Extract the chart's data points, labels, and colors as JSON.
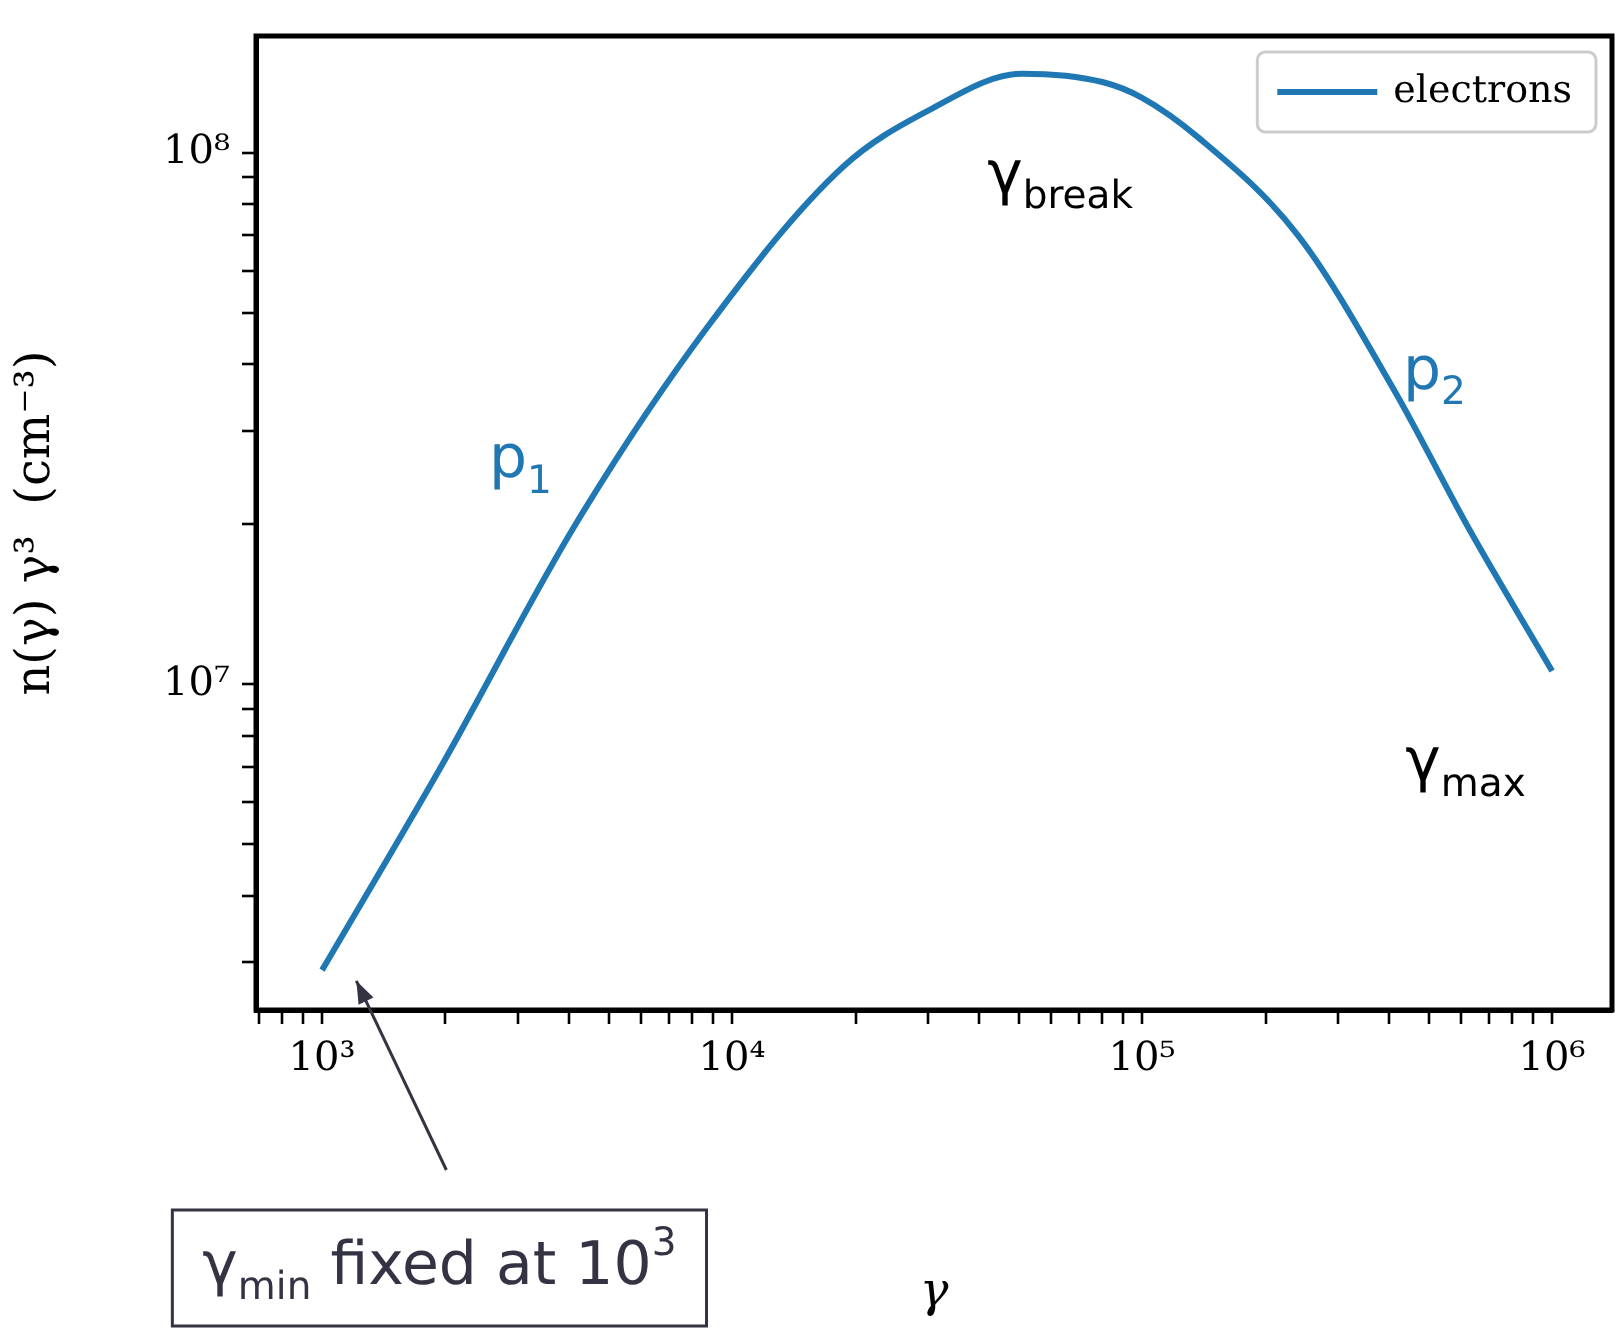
{
  "chart_data": {
    "type": "line",
    "xlabel": "γ",
    "ylabel": "n(γ) γ³  (cm⁻³)",
    "log": "xy",
    "legend": "top right",
    "x": [
      1000,
      1950,
      4150,
      8700,
      18600,
      30000,
      51000,
      80000,
      100000,
      137000,
      240000,
      410000,
      630000,
      1000000
    ],
    "series": [
      {
        "name": "electrons",
        "color": "#1f77b4",
        "values": [
          2900000,
          7000000,
          20000000,
          47000000,
          94000000,
          120000000,
          141000000,
          136000000,
          127000000,
          107000000,
          70000000,
          36000000,
          19500000,
          10600000
        ]
      }
    ],
    "xlim": [
      690,
      1400000
    ],
    "ylim": [
      2440000,
      166000000
    ],
    "xticks": [
      {
        "value": 700,
        "label": null
      },
      {
        "value": 800,
        "label": null
      },
      {
        "value": 900,
        "label": null
      },
      {
        "value": 1000,
        "label": "10³"
      },
      {
        "value": 2000,
        "label": null
      },
      {
        "value": 3000,
        "label": null
      },
      {
        "value": 4000,
        "label": null
      },
      {
        "value": 5000,
        "label": null
      },
      {
        "value": 6000,
        "label": null
      },
      {
        "value": 7000,
        "label": null
      },
      {
        "value": 8000,
        "label": null
      },
      {
        "value": 9000,
        "label": null
      },
      {
        "value": 10000,
        "label": "10⁴"
      },
      {
        "value": 20000,
        "label": null
      },
      {
        "value": 30000,
        "label": null
      },
      {
        "value": 40000,
        "label": null
      },
      {
        "value": 50000,
        "label": null
      },
      {
        "value": 60000,
        "label": null
      },
      {
        "value": 70000,
        "label": null
      },
      {
        "value": 80000,
        "label": null
      },
      {
        "value": 90000,
        "label": null
      },
      {
        "value": 100000,
        "label": "10⁵"
      },
      {
        "value": 200000,
        "label": null
      },
      {
        "value": 300000,
        "label": null
      },
      {
        "value": 400000,
        "label": null
      },
      {
        "value": 500000,
        "label": null
      },
      {
        "value": 600000,
        "label": null
      },
      {
        "value": 700000,
        "label": null
      },
      {
        "value": 800000,
        "label": null
      },
      {
        "value": 900000,
        "label": null
      },
      {
        "value": 1000000,
        "label": "10⁶"
      }
    ],
    "yticks": [
      {
        "value": 3000000,
        "label": null
      },
      {
        "value": 4000000,
        "label": null
      },
      {
        "value": 5000000,
        "label": null
      },
      {
        "value": 6000000,
        "label": null
      },
      {
        "value": 7000000,
        "label": null
      },
      {
        "value": 8000000,
        "label": null
      },
      {
        "value": 9000000,
        "label": null
      },
      {
        "value": 10000000,
        "label": "10⁷"
      },
      {
        "value": 20000000,
        "label": null
      },
      {
        "value": 30000000,
        "label": null
      },
      {
        "value": 40000000,
        "label": null
      },
      {
        "value": 50000000,
        "label": null
      },
      {
        "value": 60000000,
        "label": null
      },
      {
        "value": 70000000,
        "label": null
      },
      {
        "value": 80000000,
        "label": null
      },
      {
        "value": 90000000,
        "label": null
      },
      {
        "value": 100000000,
        "label": "10⁸"
      }
    ],
    "annotations": [
      "γ$_{break}$",
      "p$_{1}$",
      "p$_{2}$",
      "γ$_{max}$",
      "γ$_{min}$ fixed at 10$^{3}$"
    ]
  }
}
